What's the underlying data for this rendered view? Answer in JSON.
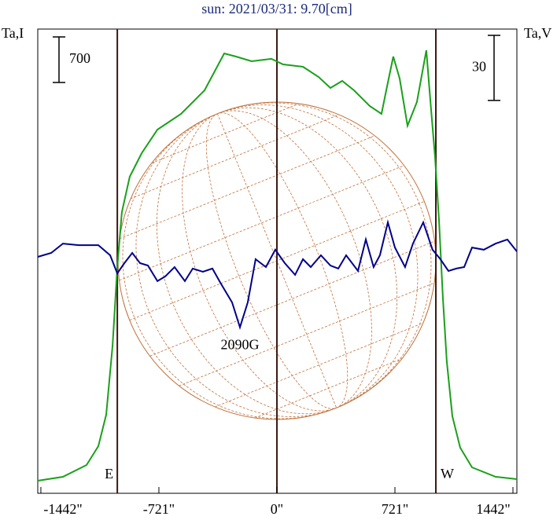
{
  "chart_data": {
    "type": "line",
    "title": "sun: 2021/03/31: 9.70[cm]",
    "y_label": "Ta,I",
    "y2_label": "Ta,V",
    "xlim": [
      -1461,
      1466
    ],
    "xticks": [
      {
        "value": -1442,
        "label": "-1442\""
      },
      {
        "value": -721,
        "label": "-721\""
      },
      {
        "value": 0,
        "label": "0\""
      },
      {
        "value": 721,
        "label": "721\""
      },
      {
        "value": 1442,
        "label": "1442\""
      }
    ],
    "ylim": [
      -193,
      6940
    ],
    "y2lim": [
      -109,
      105
    ],
    "vlines": [
      -975,
      0,
      971
    ],
    "annotations": [
      {
        "text": "E",
        "x": -975
      },
      {
        "text": "W",
        "x": 971
      },
      {
        "text": "2090G",
        "x": -226,
        "y": -41,
        "axis": "y2"
      }
    ],
    "scale_bars": [
      {
        "value": 700,
        "axis": "y"
      },
      {
        "value": 30,
        "axis": "y2"
      }
    ],
    "series": [
      {
        "name": "Ta,I",
        "color": "#1aa01a",
        "x": [
          -1461,
          -1307,
          -1163,
          -1091,
          -1043,
          -1004,
          -975,
          -947,
          -899,
          -826,
          -730,
          -586,
          -442,
          -322,
          -250,
          -154,
          -34,
          38,
          159,
          255,
          327,
          399,
          471,
          567,
          639,
          673,
          711,
          750,
          798,
          855,
          913,
          942,
          966,
          990,
          1014,
          1038,
          1072,
          1120,
          1192,
          1336,
          1466
        ],
        "values": [
          0,
          60,
          241,
          531,
          1014,
          2076,
          3283,
          4128,
          4671,
          5033,
          5395,
          5637,
          5999,
          6566,
          6518,
          6445,
          6482,
          6397,
          6361,
          6204,
          6035,
          6144,
          5999,
          5757,
          5637,
          6059,
          6518,
          6180,
          5456,
          5818,
          6614,
          5697,
          4973,
          4007,
          2800,
          1835,
          990,
          507,
          205,
          60,
          24
        ]
      },
      {
        "name": "Ta,V",
        "color": "#00008b",
        "axis": "y2",
        "x": [
          -1461,
          -1379,
          -1307,
          -1211,
          -1091,
          -1019,
          -975,
          -932,
          -884,
          -836,
          -788,
          -730,
          -682,
          -625,
          -562,
          -514,
          -452,
          -394,
          -346,
          -274,
          -226,
          -178,
          -130,
          -67,
          -10,
          48,
          111,
          159,
          207,
          269,
          327,
          375,
          423,
          495,
          543,
          591,
          629,
          678,
          721,
          783,
          831,
          894,
          951,
          999,
          1048,
          1096,
          1144,
          1192,
          1264,
          1336,
          1408,
          1466
        ],
        "values": [
          0,
          1.8,
          6.1,
          5.4,
          5.4,
          0.7,
          -7.6,
          -2.9,
          1.8,
          -2.9,
          -4.0,
          -11.2,
          -9.0,
          -4.7,
          -11.2,
          -5.4,
          -6.9,
          -5.4,
          -11.9,
          -21.0,
          -32.5,
          -21.0,
          -1.1,
          -4.7,
          3.3,
          -2.9,
          -8.3,
          -1.1,
          -4.7,
          0.7,
          -4.0,
          -5.4,
          0.7,
          -6.5,
          8.0,
          -4.7,
          0.7,
          15.9,
          4.3,
          -4.7,
          6.1,
          15.9,
          3.3,
          -1.1,
          -6.5,
          -5.4,
          -4.7,
          4.3,
          3.3,
          6.1,
          8.0,
          2.5
        ]
      }
    ]
  }
}
